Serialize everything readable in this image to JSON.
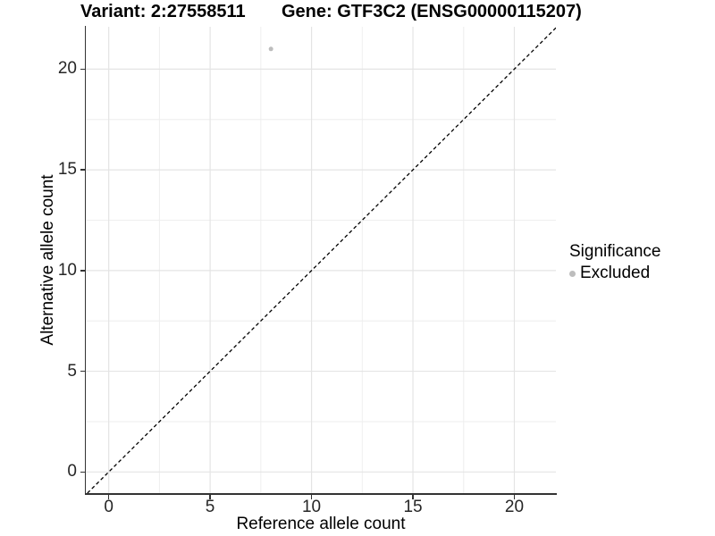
{
  "titles": {
    "variant": "Variant: 2:27558511",
    "gene": "Gene: GTF3C2 (ENSG00000115207)"
  },
  "chart_data": {
    "type": "scatter",
    "title_left": "Variant: 2:27558511",
    "title_right": "Gene: GTF3C2 (ENSG00000115207)",
    "xlabel": "Reference allele count",
    "ylabel": "Alternative allele count",
    "xlim": [
      -1.13,
      22.05
    ],
    "ylim": [
      -1.05,
      22.1
    ],
    "x_major_ticks": [
      0,
      5,
      10,
      15,
      20
    ],
    "y_major_ticks": [
      0,
      5,
      10,
      15,
      20
    ],
    "x_minor_gridlines": [
      2.5,
      7.5,
      12.5,
      17.5
    ],
    "y_minor_gridlines": [
      2.5,
      7.5,
      12.5,
      17.5
    ],
    "grid": "major and minor, light gray on white",
    "identity_line": {
      "slope": 1,
      "intercept": 0,
      "style": "dashed",
      "color": "#000000"
    },
    "series": [
      {
        "name": "Excluded",
        "marker": "circle",
        "color": "#bdbdbd",
        "points": [
          {
            "x": 8,
            "y": 21
          }
        ]
      }
    ],
    "legend": {
      "title": "Significance",
      "position": "right",
      "entries": [
        {
          "label": "Excluded",
          "color": "#bdbdbd",
          "marker": "circle"
        }
      ]
    }
  },
  "colors": {
    "background": "#ffffff",
    "axis_line": "#333333",
    "grid_major": "#e4e4e4",
    "grid_minor": "#eeeeee",
    "tick_text": "#262626",
    "title_text": "#000000",
    "point": "#bdbdbd"
  }
}
